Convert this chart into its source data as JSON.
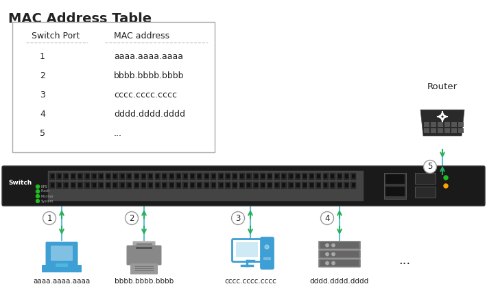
{
  "title": "MAC Address Table",
  "table_header": [
    "Switch Port",
    "MAC address"
  ],
  "table_rows": [
    [
      "1",
      "aaaa.aaaa.aaaa"
    ],
    [
      "2",
      "bbbb.bbbb.bbbb"
    ],
    [
      "3",
      "cccc.cccc.cccc"
    ],
    [
      "4",
      "dddd.dddd.dddd"
    ],
    [
      "5",
      "..."
    ]
  ],
  "device_labels": [
    "aaaa.aaaa.aaaa",
    "bbbb.bbbb.bbbb",
    "cccc.cccc.cccc",
    "dddd.dddd.dddd"
  ],
  "port_numbers": [
    "1",
    "2",
    "3",
    "4",
    "5"
  ],
  "router_label": "Router",
  "switch_label": "Switch",
  "dots_label": "...",
  "background_color": "#ffffff",
  "switch_color": "#1a1a1a",
  "cable_color": "#5bbfde",
  "arrow_color": "#27ae60",
  "circle_color": "#999999",
  "laptop_color": "#3d9fd3",
  "printer_color": "#888888",
  "monitor_color": "#3d9fd3",
  "server_color": "#7a7a7a",
  "router_color": "#2a2a2a",
  "table_border_color": "#aaaaaa",
  "text_color": "#222222",
  "title_fontsize": 14,
  "label_fontsize": 8,
  "table_fontsize": 9
}
